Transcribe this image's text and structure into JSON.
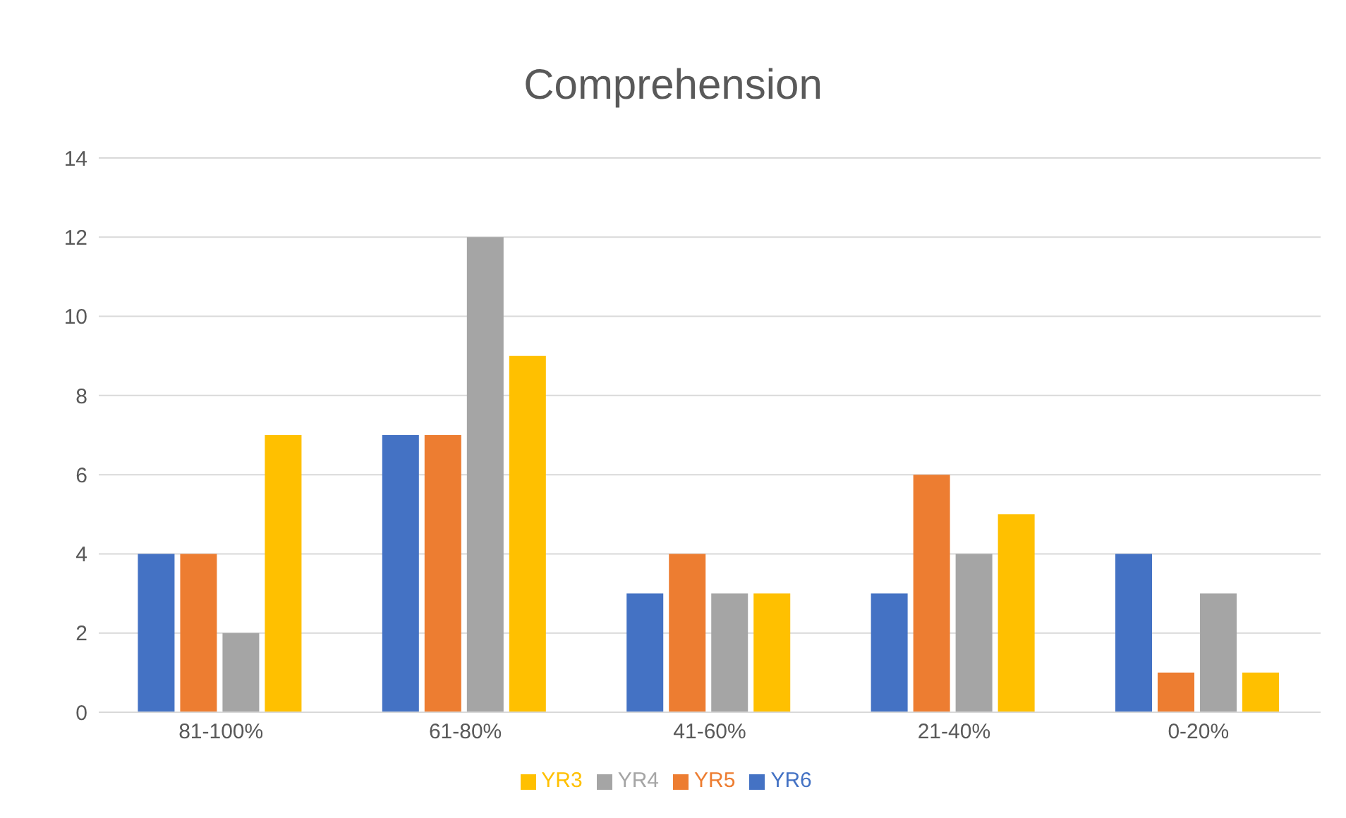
{
  "chart_data": {
    "type": "bar",
    "title": "Comprehension",
    "categories": [
      "81-100%",
      "61-80%",
      "41-60%",
      "21-40%",
      "0-20%"
    ],
    "series": [
      {
        "name": "YR6",
        "color": "#4472c4",
        "values": [
          4,
          7,
          3,
          3,
          4
        ]
      },
      {
        "name": "YR5",
        "color": "#ed7d31",
        "values": [
          4,
          7,
          4,
          6,
          1
        ]
      },
      {
        "name": "YR4",
        "color": "#a5a5a5",
        "values": [
          2,
          12,
          3,
          4,
          3
        ]
      },
      {
        "name": "YR3",
        "color": "#ffc000",
        "values": [
          7,
          9,
          3,
          5,
          1
        ]
      }
    ],
    "ylim": [
      0,
      14
    ],
    "yticks": [
      0,
      2,
      4,
      6,
      8,
      10,
      12,
      14
    ],
    "grid": "y",
    "legend": "bottom"
  }
}
